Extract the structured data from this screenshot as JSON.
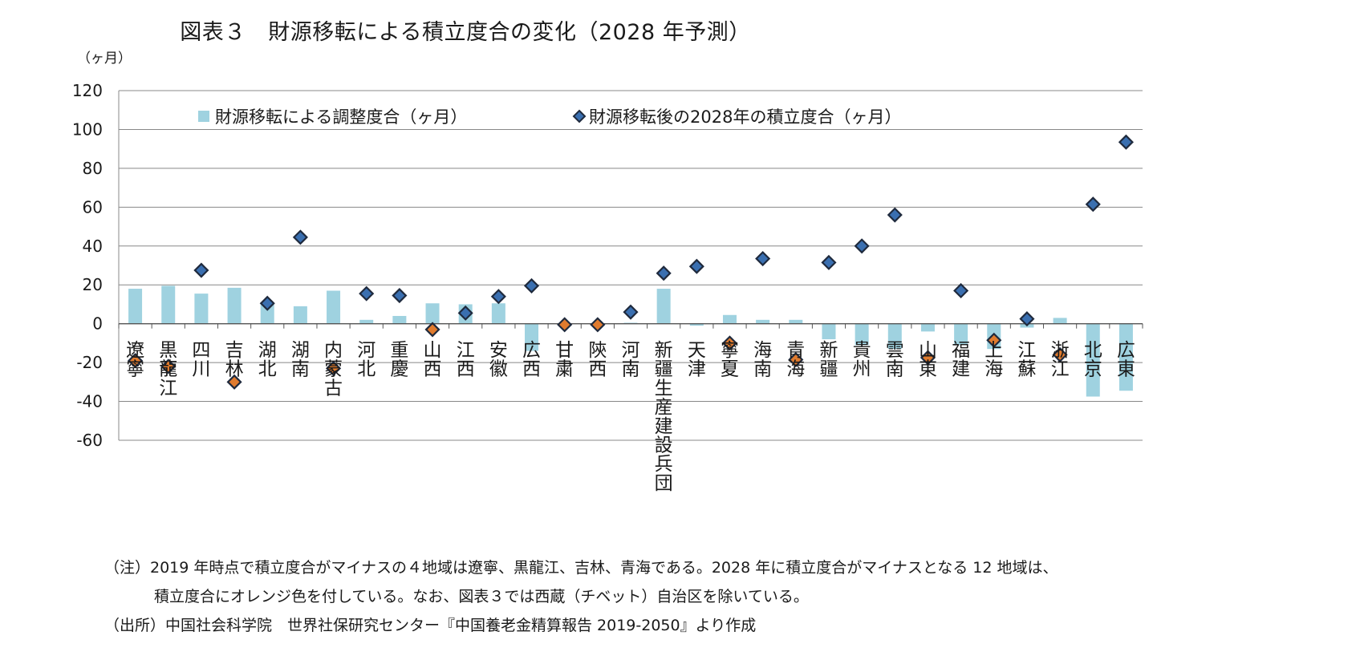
{
  "title": "図表３　財源移転による積立度合の変化（2028 年予測）",
  "unit": "（ヶ月）",
  "colors": {
    "bar": "#9fd2e0",
    "diamond_positive": "#3a6fb0",
    "diamond_negative": "#e07b2e",
    "diamond_stroke": "#1f2a3d",
    "grid": "#888888"
  },
  "chart_data": {
    "type": "bar",
    "ylim": [
      -60,
      120
    ],
    "yticks": [
      -60,
      -40,
      -20,
      0,
      20,
      40,
      60,
      80,
      100,
      120
    ],
    "grid": true,
    "legend_position": "top",
    "categories": [
      "遼寧",
      "黒龍江",
      "四川",
      "吉林",
      "湖北",
      "湖南",
      "内蒙古",
      "河北",
      "重慶",
      "山西",
      "江西",
      "安徽",
      "広西",
      "甘粛",
      "陝西",
      "河南",
      "新疆生産建設兵団",
      "天津",
      "寧夏",
      "海南",
      "青海",
      "新疆",
      "貴州",
      "雲南",
      "山東",
      "福建",
      "上海",
      "江蘇",
      "浙江",
      "北京",
      "広東"
    ],
    "series": [
      {
        "name": "財源移転による調整度合（ヶ月）",
        "kind": "bar",
        "values": [
          18,
          19.5,
          15.5,
          18.5,
          10,
          9,
          17,
          2,
          4,
          10.5,
          10,
          10.5,
          -14,
          -1,
          -1,
          0.5,
          18,
          -1,
          4.5,
          2,
          2,
          -8,
          -11,
          -13,
          -4,
          -11,
          -13,
          -2,
          3,
          -37.5,
          -34.5
        ]
      },
      {
        "name": "財源移転後の2028年の積立度合（ヶ月）",
        "kind": "diamond",
        "values": [
          -19,
          -22,
          27.5,
          -30,
          10.5,
          44.5,
          -23,
          15.5,
          14.5,
          -3,
          5.5,
          14,
          19.5,
          -0.5,
          -0.5,
          6,
          26,
          29.5,
          -10,
          33.5,
          -18.5,
          31.5,
          40,
          56,
          -17.5,
          17,
          -8.5,
          2.5,
          -16,
          61.5,
          93.5
        ]
      }
    ]
  },
  "notes": [
    "（注）2019 年時点で積立度合がマイナスの４地域は遼寧、黒龍江、吉林、青海である。2028 年に積立度合がマイナスとなる 12 地域は、",
    "積立度合にオレンジ色を付している。なお、図表３では西蔵（チベット）自治区を除いている。",
    "（出所）中国社会科学院　世界社保研究センター『中国養老金精算報告 2019-2050』より作成"
  ]
}
